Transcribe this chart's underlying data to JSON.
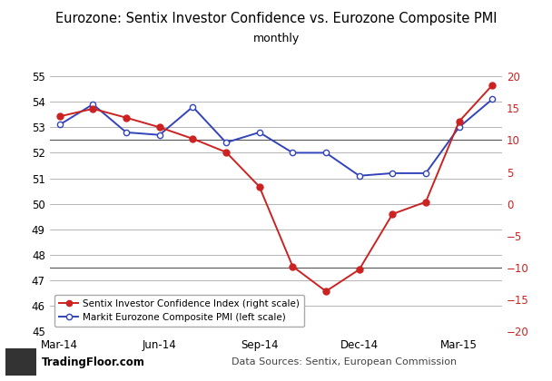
{
  "title": "Eurozone: Sentix Investor Confidence vs. Eurozone Composite PMI",
  "subtitle": "monthly",
  "xlabel_ticks": [
    "Mar-14",
    "Jun-14",
    "Sep-14",
    "Dec-14",
    "Mar-15"
  ],
  "xtick_positions": [
    0,
    3,
    6,
    9,
    12
  ],
  "pmi_label": "Markit Eurozone Composite PMI (left scale)",
  "sentix_label": "Sentix Investor Confidence Index (right scale)",
  "pmi_color": "#3344bb",
  "sentix_color": "#cc2222",
  "pmi_values": [
    53.1,
    53.9,
    52.8,
    52.7,
    53.8,
    52.4,
    52.8,
    52.0,
    52.0,
    51.1,
    51.2,
    51.2,
    53.0,
    54.1
  ],
  "sentix_values": [
    13.7,
    14.9,
    13.5,
    12.0,
    10.2,
    8.1,
    2.7,
    -9.8,
    -13.7,
    -10.3,
    -1.6,
    0.3,
    12.9,
    18.6
  ],
  "pmi_x": [
    0,
    1,
    2,
    3,
    4,
    5,
    6,
    7,
    8,
    9,
    10,
    11,
    12,
    13
  ],
  "sentix_x": [
    0,
    1,
    2,
    3,
    4,
    5,
    6,
    7,
    8,
    9,
    10,
    11,
    12,
    13
  ],
  "pmi_ylim": [
    45,
    55
  ],
  "sentix_ylim": [
    -20,
    20
  ],
  "pmi_yticks": [
    45,
    46,
    47,
    48,
    49,
    50,
    51,
    52,
    53,
    54,
    55
  ],
  "sentix_yticks": [
    -20,
    -15,
    -10,
    -5,
    0,
    5,
    10,
    15,
    20
  ],
  "dark_grid_lines": [
    47.5,
    52.5
  ],
  "grid_color": "#aaaaaa",
  "dark_line_color": "#555555",
  "background_color": "#ffffff",
  "data_sources": "Data Sources: Sentix, European Commission",
  "footer_brand": "TradingFloor.com",
  "title_fontsize": 10.5,
  "subtitle_fontsize": 9,
  "tick_fontsize": 8.5
}
